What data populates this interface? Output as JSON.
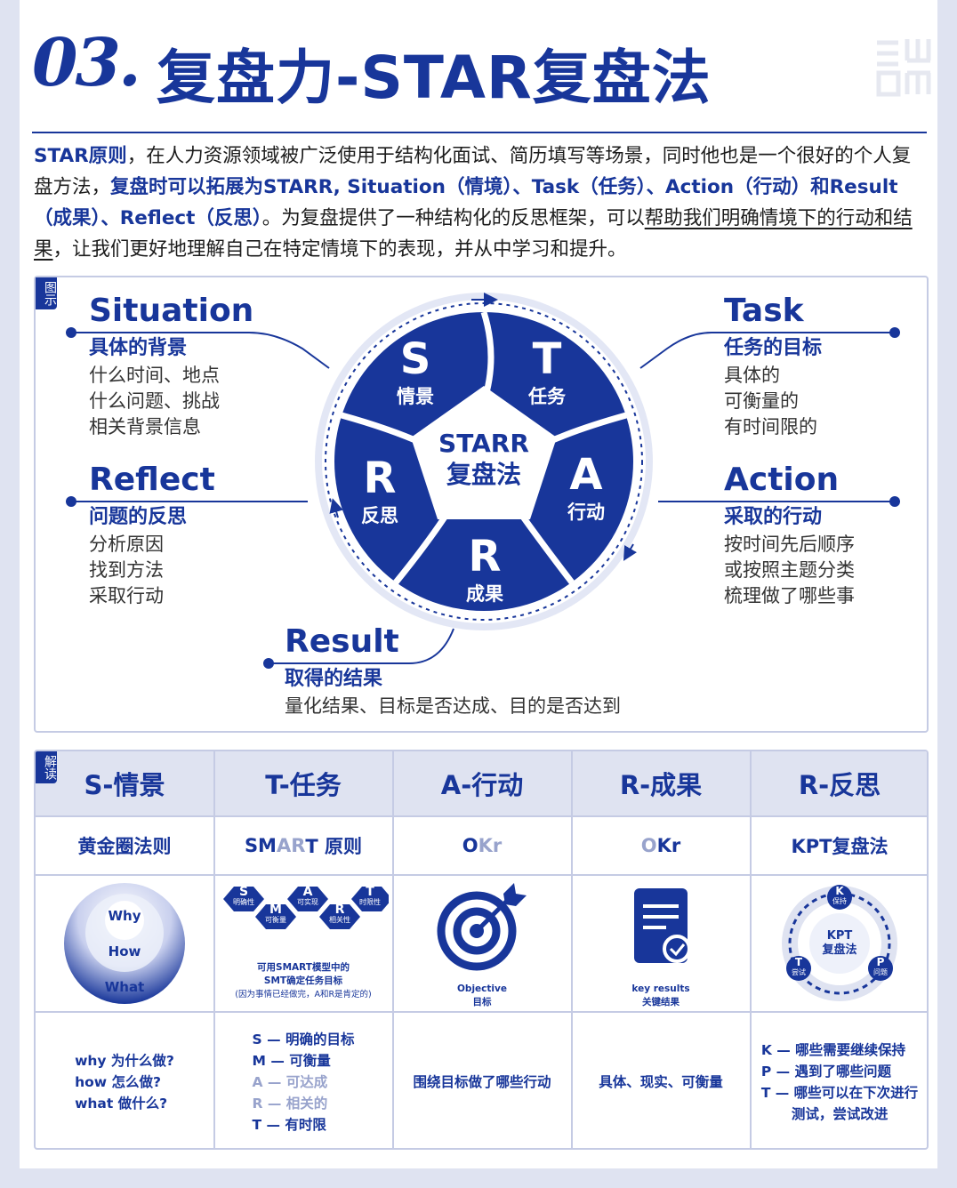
{
  "title": {
    "number": "03.",
    "text": "复盘力-STAR复盘法"
  },
  "intro": {
    "p1_bold": "STAR原则",
    "p1": "，在人力资源领域被广泛使用于结构化面试、简历填写等场景，同时他也是一个很好的个人复盘方法，",
    "p2_bold": "复盘时可以拓展为STARR, Situation（情境）、Task（任务）、Action（行动）和Result（成果）、Reflect（反思）",
    "p3": "。为复盘提供了一种结构化的反思框架，可以",
    "p3_u": "帮助我们明确情境下的行动和结果",
    "p4": "，让我们更好地理解自己在特定情境下的表现，并从中学习和提升。"
  },
  "diagram": {
    "tag": "图示",
    "center": {
      "line1": "STARR",
      "line2": "复盘法"
    },
    "segments": [
      {
        "letter": "S",
        "label": "情景"
      },
      {
        "letter": "T",
        "label": "任务"
      },
      {
        "letter": "A",
        "label": "行动"
      },
      {
        "letter": "R",
        "label": "成果"
      },
      {
        "letter": "R",
        "label": "反思"
      }
    ],
    "situation": {
      "en": "Situation",
      "sub": "具体的背景",
      "lines": [
        "什么时间、地点",
        "什么问题、挑战",
        "相关背景信息"
      ]
    },
    "task": {
      "en": "Task",
      "sub": "任务的目标",
      "lines": [
        "具体的",
        "可衡量的",
        "有时间限的"
      ]
    },
    "reflect": {
      "en": "Reflect",
      "sub": "问题的反思",
      "lines": [
        "分析原因",
        "找到方法",
        "采取行动"
      ]
    },
    "action": {
      "en": "Action",
      "sub": "采取的行动",
      "lines": [
        "按时间先后顺序",
        "或按照主题分类",
        "梳理做了哪些事"
      ]
    },
    "result": {
      "en": "Result",
      "sub": "取得的结果",
      "lines": [
        "量化结果、目标是否达成、目的是否达到"
      ]
    }
  },
  "table": {
    "tag": "解读",
    "headers": [
      "S-情景",
      "T-任务",
      "A-行动",
      "R-成果",
      "R-反思"
    ],
    "methods": {
      "golden": "黄金圈法则",
      "smart_a": "SM",
      "smart_b": "AR",
      "smart_c": "T 原则",
      "okr1_a": "O",
      "okr1_b": "K",
      "okr1_c": "r",
      "okr2_a": "O",
      "okr2_b": "Kr",
      "kpt": "KPT复盘法"
    },
    "golden_circle": {
      "why": "Why",
      "how": "How",
      "what": "What"
    },
    "smart_icon": {
      "S": "S",
      "S_t": "明确性",
      "M": "M",
      "M_t": "可衡量",
      "A": "A",
      "A_t": "可实现",
      "R": "R",
      "R_t": "相关性",
      "T": "T",
      "T_t": "时限性",
      "cap1": "可用SMART模型中的",
      "cap2": "SMT确定任务目标",
      "cap3": "(因为事情已经做完，A和R是肯定的)"
    },
    "objective": {
      "en": "Objective",
      "cn": "目标"
    },
    "keyresults": {
      "en": "key results",
      "cn": "关键结果"
    },
    "kpt_icon": {
      "K": "K",
      "K_t": "保持",
      "P": "P",
      "P_t": "问题",
      "T": "T",
      "T_t": "尝试",
      "c1": "KPT",
      "c2": "复盘法"
    },
    "desc": {
      "s": [
        "why 为什么做?",
        "how 怎么做?",
        "what 做什么?"
      ],
      "t": [
        "S — 明确的目标",
        "M — 可衡量",
        "A — 可达成",
        "R — 相关的",
        "T — 有时限"
      ],
      "a": "围绕目标做了哪些行动",
      "r": "具体、现实、可衡量",
      "k": [
        "K — 哪些需要继续保持",
        "P — 遇到了哪些问题",
        "T — 哪些可以在下次进行",
        "测试，尝试改进"
      ]
    }
  },
  "colors": {
    "brand": "#18369a",
    "light": "#dfe3f1",
    "border": "#c5cbe4"
  }
}
